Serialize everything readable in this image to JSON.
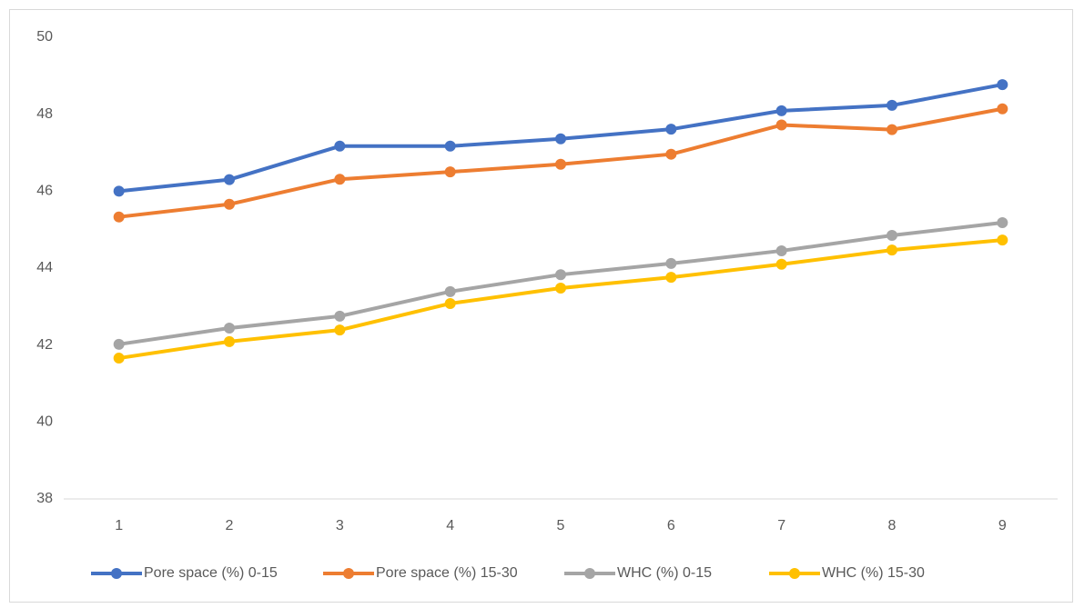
{
  "chart_data": {
    "type": "line",
    "categories": [
      "1",
      "2",
      "3",
      "4",
      "5",
      "6",
      "7",
      "8",
      "9"
    ],
    "series": [
      {
        "name": "Pore space (%) 0-15",
        "color": "#4472c4",
        "values": [
          46.0,
          46.3,
          47.17,
          47.17,
          47.36,
          47.61,
          48.09,
          48.23,
          48.77
        ]
      },
      {
        "name": "Pore space (%) 15-30",
        "color": "#ed7d31",
        "values": [
          45.33,
          45.66,
          46.31,
          46.5,
          46.7,
          46.96,
          47.72,
          47.6,
          48.14
        ]
      },
      {
        "name": "WHC (%) 0-15",
        "color": "#a5a5a5",
        "values": [
          42.02,
          42.44,
          42.75,
          43.39,
          43.83,
          44.12,
          44.45,
          44.85,
          45.18
        ]
      },
      {
        "name": "WHC (%) 15-30",
        "color": "#ffc000",
        "values": [
          41.66,
          42.09,
          42.39,
          43.08,
          43.48,
          43.76,
          44.1,
          44.47,
          44.73
        ]
      }
    ],
    "ylim": [
      38,
      50
    ],
    "yticks": [
      38,
      40,
      42,
      44,
      46,
      48,
      50
    ],
    "grid": false,
    "legend": "bottom"
  }
}
